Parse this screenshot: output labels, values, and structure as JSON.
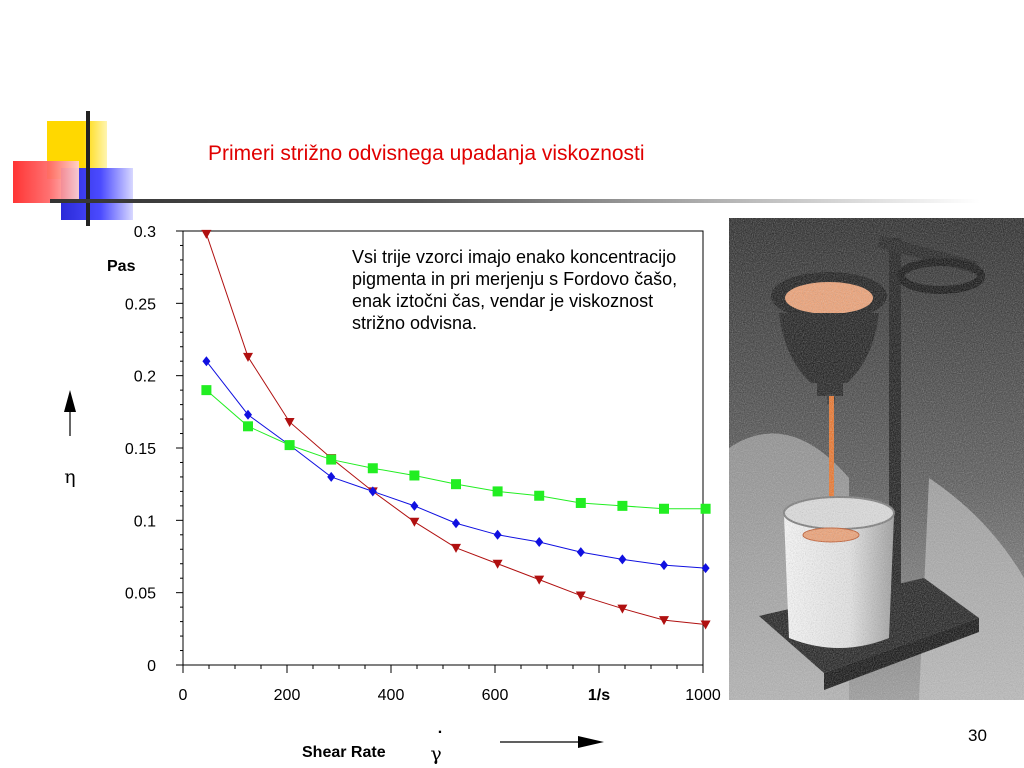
{
  "slide": {
    "title": "Primeri strižno odvisnega upadanja viskoznosti",
    "note": "Vsi trije vzorci imajo enako koncentracijo pigmenta in pri merjenju s Fordovo čašo, enak iztočni čas, vendar je viskoznost strižno odvisna.",
    "page_number": "30",
    "xlabel": "Shear Rate",
    "x_symbol": "γ",
    "x_symbol_dot": ".",
    "y_symbol": "η",
    "y_unit": "Pas",
    "photo_icon": "ford-cup-viscometer-photo",
    "colors": {
      "title": "#e00000",
      "stream": "#f07020",
      "fill": "#f4a070"
    }
  },
  "chart_data": {
    "type": "line",
    "xlim": [
      0,
      1000
    ],
    "ylim": [
      0,
      0.3
    ],
    "x_ticks": [
      "0",
      "200",
      "400",
      "600",
      "1/s",
      "1000"
    ],
    "y_ticks": [
      "0.3",
      "0.25",
      "0.2",
      "0.15",
      "0.1",
      "0.05",
      "0"
    ],
    "grid": false,
    "series": [
      {
        "marker": "triangle-down",
        "color": "#b01010",
        "x": [
          45,
          125,
          205,
          285,
          365,
          445,
          525,
          605,
          685,
          765,
          845,
          925,
          1005
        ],
        "y": [
          0.298,
          0.213,
          0.168,
          0.143,
          0.12,
          0.099,
          0.081,
          0.07,
          0.059,
          0.048,
          0.039,
          0.031,
          0.028
        ]
      },
      {
        "marker": "diamond",
        "color": "#1010e0",
        "x": [
          45,
          125,
          205,
          285,
          365,
          445,
          525,
          605,
          685,
          765,
          845,
          925,
          1005
        ],
        "y": [
          0.21,
          0.173,
          0.152,
          0.13,
          0.12,
          0.11,
          0.098,
          0.09,
          0.085,
          0.078,
          0.073,
          0.069,
          0.067
        ]
      },
      {
        "marker": "square",
        "color": "#22ee22",
        "x": [
          45,
          125,
          205,
          285,
          365,
          445,
          525,
          605,
          685,
          765,
          845,
          925,
          1005
        ],
        "y": [
          0.19,
          0.165,
          0.152,
          0.142,
          0.136,
          0.131,
          0.125,
          0.12,
          0.117,
          0.112,
          0.11,
          0.108,
          0.108
        ]
      }
    ]
  }
}
